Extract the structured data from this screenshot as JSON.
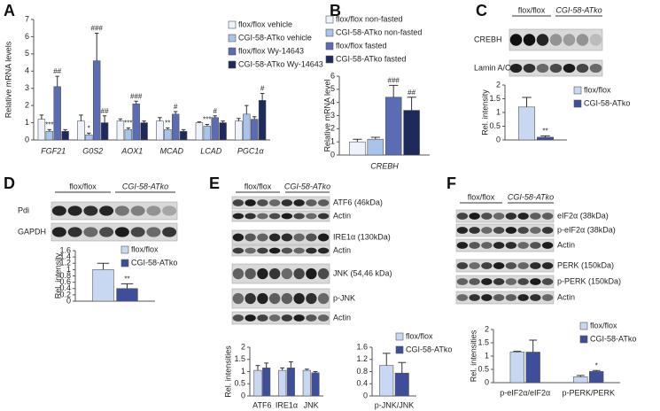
{
  "panel_labels": [
    "A",
    "B",
    "C",
    "D",
    "E",
    "F"
  ],
  "blots": [
    {
      "groups": [
        "flox/flox",
        "CGI-58-ATko"
      ],
      "rows": [
        "CREBH",
        "Lamin A/C"
      ]
    },
    {
      "groups": [
        "flox/flox",
        "CGI-58-ATko"
      ],
      "rows": [
        "Pdi",
        "GAPDH"
      ]
    },
    {
      "groups": [
        "flox/flox",
        "CGI-58-ATko"
      ],
      "rows": [
        "ATF6 (46kDa)",
        "Actin",
        "IRE1α  (130kDa)",
        "Actin",
        "JNK (54,46 kDa)",
        "p-JNK",
        "Actin"
      ]
    },
    {
      "groups": [
        "flox/flox",
        "CGI-58-ATko"
      ],
      "rows": [
        "eIF2α  (38kDa)",
        "p-eIF2α (38kDa)",
        "Actin",
        "PERK (150kDa)",
        "p-PERK (150kDa)",
        "Actin"
      ]
    }
  ],
  "chart_data": [
    {
      "type": "bar",
      "y_label": "Relative mRNA levels",
      "categories": [
        "FGF21",
        "G0S2",
        "AOX1",
        "MCAD",
        "LCAD",
        "PGC1α"
      ],
      "ylim": [
        0,
        7
      ],
      "yticks": [
        0,
        1,
        2,
        3,
        4,
        5,
        6,
        7
      ],
      "legend": "top-right",
      "series": [
        {
          "name": "flox/flox vehicle",
          "color": "#eef2fb",
          "values": [
            1.2,
            1.1,
            1.1,
            1.1,
            1.0,
            1.1
          ],
          "errors": [
            0.25,
            0.35,
            0.12,
            0.2,
            0.05,
            0.15
          ]
        },
        {
          "name": "CGI-58-ATko vehicle",
          "color": "#a9c4ea",
          "values": [
            0.5,
            0.3,
            0.6,
            0.6,
            0.8,
            1.5
          ],
          "errors": [
            0.1,
            0.1,
            0.1,
            0.1,
            0.1,
            0.5
          ],
          "annotations": [
            "***",
            "*",
            "***",
            "**",
            "***",
            null
          ]
        },
        {
          "name": "flox/flox Wy-14643",
          "color": "#5a6cb3",
          "values": [
            3.1,
            4.6,
            2.1,
            1.5,
            1.3,
            1.2
          ],
          "errors": [
            0.6,
            1.6,
            0.15,
            0.15,
            0.1,
            0.15
          ],
          "annotations": [
            "##",
            "###",
            "###",
            "#",
            "#",
            null
          ]
        },
        {
          "name": "CGI-58-ATko Wy-14643",
          "color": "#1f2a5c",
          "values": [
            0.5,
            1.0,
            1.0,
            0.5,
            1.0,
            2.3
          ],
          "errors": [
            0.1,
            0.4,
            0.1,
            0.1,
            0.1,
            0.4
          ],
          "annotations": [
            null,
            "##",
            null,
            null,
            null,
            "#"
          ]
        }
      ]
    },
    {
      "type": "bar",
      "y_label": "Relative mRNA level",
      "categories": [
        "CREBH"
      ],
      "ylim": [
        0,
        6
      ],
      "yticks": [
        0,
        1,
        2,
        3,
        4,
        5,
        6
      ],
      "legend": "top-left",
      "series": [
        {
          "name": "flox/flox non-fasted",
          "color": "#eef2fb",
          "values": [
            1.0
          ],
          "errors": [
            0.2
          ]
        },
        {
          "name": "CGI-58-ATko non-fasted",
          "color": "#a9c4ea",
          "values": [
            1.2
          ],
          "errors": [
            0.15
          ]
        },
        {
          "name": "flox/flox fasted",
          "color": "#5a6cb3",
          "values": [
            4.4
          ],
          "errors": [
            0.9
          ],
          "annotations": [
            "###"
          ]
        },
        {
          "name": "CGI-58-ATko fasted",
          "color": "#1f2a5c",
          "values": [
            3.4
          ],
          "errors": [
            1.0
          ],
          "annotations": [
            "##"
          ]
        }
      ]
    },
    {
      "type": "bar",
      "y_label": "Rel. intensity",
      "categories": [
        null
      ],
      "ylim": [
        0,
        2
      ],
      "yticks": [
        0,
        0.5,
        1,
        1.5,
        2
      ],
      "legend": "top-right",
      "series": [
        {
          "name": "flox/flox",
          "color": "#c9d8f2",
          "values": [
            1.2
          ],
          "errors": [
            0.35
          ]
        },
        {
          "name": "CGI-58-ATko",
          "color": "#3d4f9a",
          "values": [
            0.1
          ],
          "errors": [
            0.05
          ],
          "annotations": [
            "**"
          ]
        }
      ]
    },
    {
      "type": "bar",
      "y_label": "Rel. intensity",
      "categories": [
        null
      ],
      "ylim": [
        0,
        1.6
      ],
      "yticks": [
        0,
        0.2,
        0.4,
        0.6,
        0.8,
        1,
        1.2,
        1.4,
        1.6
      ],
      "legend": "top-right",
      "series": [
        {
          "name": "flox/flox",
          "color": "#c9d8f2",
          "values": [
            1.0
          ],
          "errors": [
            0.2
          ]
        },
        {
          "name": "CGI-58-ATko",
          "color": "#3d4f9a",
          "values": [
            0.4
          ],
          "errors": [
            0.15
          ],
          "annotations": [
            "**"
          ]
        }
      ]
    },
    {
      "type": "bar",
      "y_label": "Rel. intensities",
      "categories": [
        "ATF6",
        "IRE1α",
        "JNK"
      ],
      "ylim": [
        0,
        2
      ],
      "yticks": [
        0,
        0.5,
        1,
        1.5,
        2
      ],
      "series": [
        {
          "color": "#c9d8f2",
          "values": [
            1.05,
            1.05,
            1.05
          ],
          "errors": [
            0.2,
            0.1,
            0.05
          ]
        },
        {
          "color": "#3d4f9a",
          "values": [
            1.15,
            1.15,
            0.95
          ],
          "errors": [
            0.2,
            0.25,
            0.05
          ]
        }
      ]
    },
    {
      "type": "bar",
      "categories": [
        "p-JNK/JNK"
      ],
      "ylim": [
        0,
        1.6
      ],
      "yticks": [
        0,
        0.4,
        0.8,
        1.2,
        1.6
      ],
      "legend": "top-right",
      "series": [
        {
          "name": "flox/flox",
          "color": "#c9d8f2",
          "values": [
            1.0
          ],
          "errors": [
            0.4
          ]
        },
        {
          "name": "CGI-58-ATko",
          "color": "#3d4f9a",
          "values": [
            0.75
          ],
          "errors": [
            0.35
          ]
        }
      ]
    },
    {
      "type": "bar",
      "y_label": "Rel. intensities",
      "categories": [
        "p-eIF2α/eIF2α",
        "p-PERK/PERK"
      ],
      "ylim": [
        0,
        2
      ],
      "yticks": [
        0,
        0.5,
        1,
        1.5,
        2
      ],
      "legend": "top-right",
      "series": [
        {
          "name": "flox/flox",
          "color": "#c9d8f2",
          "values": [
            1.15,
            0.22
          ],
          "errors": [
            0.03,
            0.05
          ]
        },
        {
          "name": "CGI-58-ATko",
          "color": "#3d4f9a",
          "values": [
            1.15,
            0.42
          ],
          "errors": [
            0.45,
            0.04
          ],
          "annotations": [
            null,
            "*"
          ]
        }
      ]
    }
  ]
}
